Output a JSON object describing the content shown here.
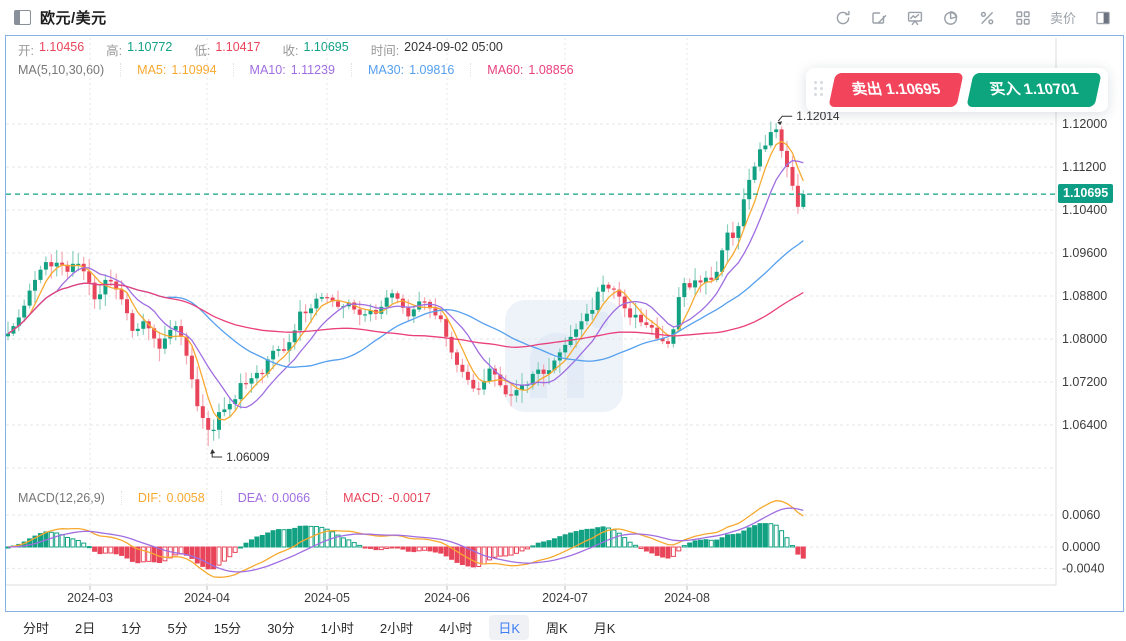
{
  "header": {
    "title": "欧元/美元",
    "toolbar": {
      "icons": [
        "refresh-icon",
        "draw-icon",
        "kline-board-icon",
        "pie-icon",
        "percent-icon",
        "grid-icon",
        "layout-split-icon"
      ],
      "sell_price_label": "卖价"
    }
  },
  "info": {
    "open_label": "开:",
    "open": "1.10456",
    "high_label": "高:",
    "high": "1.10772",
    "low_label": "低:",
    "low": "1.10417",
    "close_label": "收:",
    "close": "1.10695",
    "time_label": "时间:",
    "time": "2024-09-02 05:00"
  },
  "ma_legend": {
    "title": "MA(5,10,30,60)",
    "ma5_label": "MA5:",
    "ma5": "1.10994",
    "ma10_label": "MA10:",
    "ma10": "1.11239",
    "ma30_label": "MA30:",
    "ma30": "1.09816",
    "ma60_label": "MA60:",
    "ma60": "1.08856"
  },
  "macd_legend": {
    "title": "MACD(12,26,9)",
    "dif_label": "DIF:",
    "dif": "0.0058",
    "dea_label": "DEA:",
    "dea": "0.0066",
    "macd_label": "MACD:",
    "macd": "-0.0017"
  },
  "trade": {
    "sell_label": "卖出",
    "sell_price": "1.10695",
    "buy_label": "买入",
    "buy_price": "1.10701"
  },
  "price_line": {
    "value": "1.10695"
  },
  "timeframes": {
    "items": [
      "分时",
      "2日",
      "1分",
      "5分",
      "15分",
      "30分",
      "1小时",
      "2小时",
      "4小时",
      "日K",
      "周K",
      "月K"
    ],
    "active": "日K"
  },
  "chart_data": {
    "type": "candlestick+macd",
    "title": "EUR/USD daily candlestick with MA(5,10,30,60) overlays and MACD(12,26,9)",
    "x_axis_labels": [
      "2024-03",
      "2024-04",
      "2024-05",
      "2024-06",
      "2024-07",
      "2024-08"
    ],
    "y_axis_labels": [
      "1.12000",
      "1.11200",
      "1.10400",
      "1.09600",
      "1.08800",
      "1.08000",
      "1.07200",
      "1.06400"
    ],
    "macd_axis_labels": [
      "0.0060",
      "0.0000",
      "-0.0040"
    ],
    "y_range_note": "main panel gridline step 0.00800, unlabeled bottom gridline at 1.05600",
    "current_price": 1.10695,
    "annotations": [
      {
        "index": 142,
        "type": "high",
        "text": "1.12014",
        "value": 1.12014
      },
      {
        "index": 37,
        "type": "low",
        "text": "1.06009",
        "value": 1.06009
      }
    ],
    "first_open": 1.0805,
    "last_candle": {
      "open": 1.10456,
      "high": 1.10772,
      "low": 1.10417,
      "close": 1.10695
    },
    "closes": [
      1.081,
      1.0824,
      1.084,
      1.0862,
      1.089,
      1.091,
      1.0929,
      1.0943,
      1.0935,
      1.0942,
      1.0938,
      1.0925,
      1.094,
      1.094,
      1.0926,
      1.0905,
      1.0874,
      1.0883,
      1.091,
      1.0907,
      1.0892,
      1.0874,
      1.0848,
      1.0815,
      1.0819,
      1.0833,
      1.082,
      1.0801,
      1.0782,
      1.0801,
      1.0817,
      1.0824,
      1.0804,
      1.0769,
      1.0725,
      1.0675,
      1.0653,
      1.0631,
      1.0631,
      1.0664,
      1.0669,
      1.0679,
      1.0688,
      1.0718,
      1.0717,
      1.0727,
      1.0737,
      1.0735,
      1.0762,
      1.0778,
      1.0781,
      1.0778,
      1.0794,
      1.0816,
      1.0851,
      1.0848,
      1.0857,
      1.0875,
      1.0878,
      1.0877,
      1.087,
      1.086,
      1.0861,
      1.0868,
      1.0855,
      1.0845,
      1.0846,
      1.0854,
      1.0847,
      1.086,
      1.0877,
      1.0885,
      1.0875,
      1.0858,
      1.0842,
      1.0855,
      1.087,
      1.0869,
      1.0857,
      1.0844,
      1.0837,
      1.0804,
      1.0775,
      1.0752,
      1.0739,
      1.0724,
      1.0708,
      1.0706,
      1.0722,
      1.0745,
      1.0734,
      1.0714,
      1.0697,
      1.0695,
      1.0705,
      1.0714,
      1.0715,
      1.0735,
      1.0743,
      1.0735,
      1.0742,
      1.076,
      1.0775,
      1.0789,
      1.0804,
      1.0818,
      1.0833,
      1.0847,
      1.0854,
      1.0888,
      1.0901,
      1.0894,
      1.0892,
      1.0879,
      1.0857,
      1.084,
      1.0845,
      1.0831,
      1.0826,
      1.0821,
      1.0801,
      1.0796,
      1.0791,
      1.0818,
      1.0878,
      1.0904,
      1.0896,
      1.0909,
      1.0905,
      1.0914,
      1.091,
      1.0925,
      1.0965,
      1.0998,
      1.0988,
      1.101,
      1.106,
      1.1096,
      1.1121,
      1.1153,
      1.116,
      1.1185,
      1.119,
      1.115,
      1.112,
      1.1085,
      1.1046,
      1.10695
    ],
    "indicators": {
      "ma_periods": [
        5,
        10,
        30,
        60
      ],
      "macd_params": [
        12,
        26,
        9
      ]
    },
    "legend_position": "top-left",
    "grid": true,
    "colors": {
      "up": "#12a182",
      "down": "#e8455a",
      "up_wick": "#8ccfbe",
      "down_wick": "#f5a8b1",
      "ma5": "#f7a92f",
      "ma10": "#a06ee1",
      "ma30": "#55a0ef",
      "ma60": "#e9407c",
      "dif": "#f7a92f",
      "dea": "#a06ee1",
      "price_line": "#11a183",
      "badge": "#0e9e86",
      "grid_line": "#e6e6e6",
      "axis_text": "#3c3c3c",
      "frame_border": "#85b2e5"
    }
  }
}
